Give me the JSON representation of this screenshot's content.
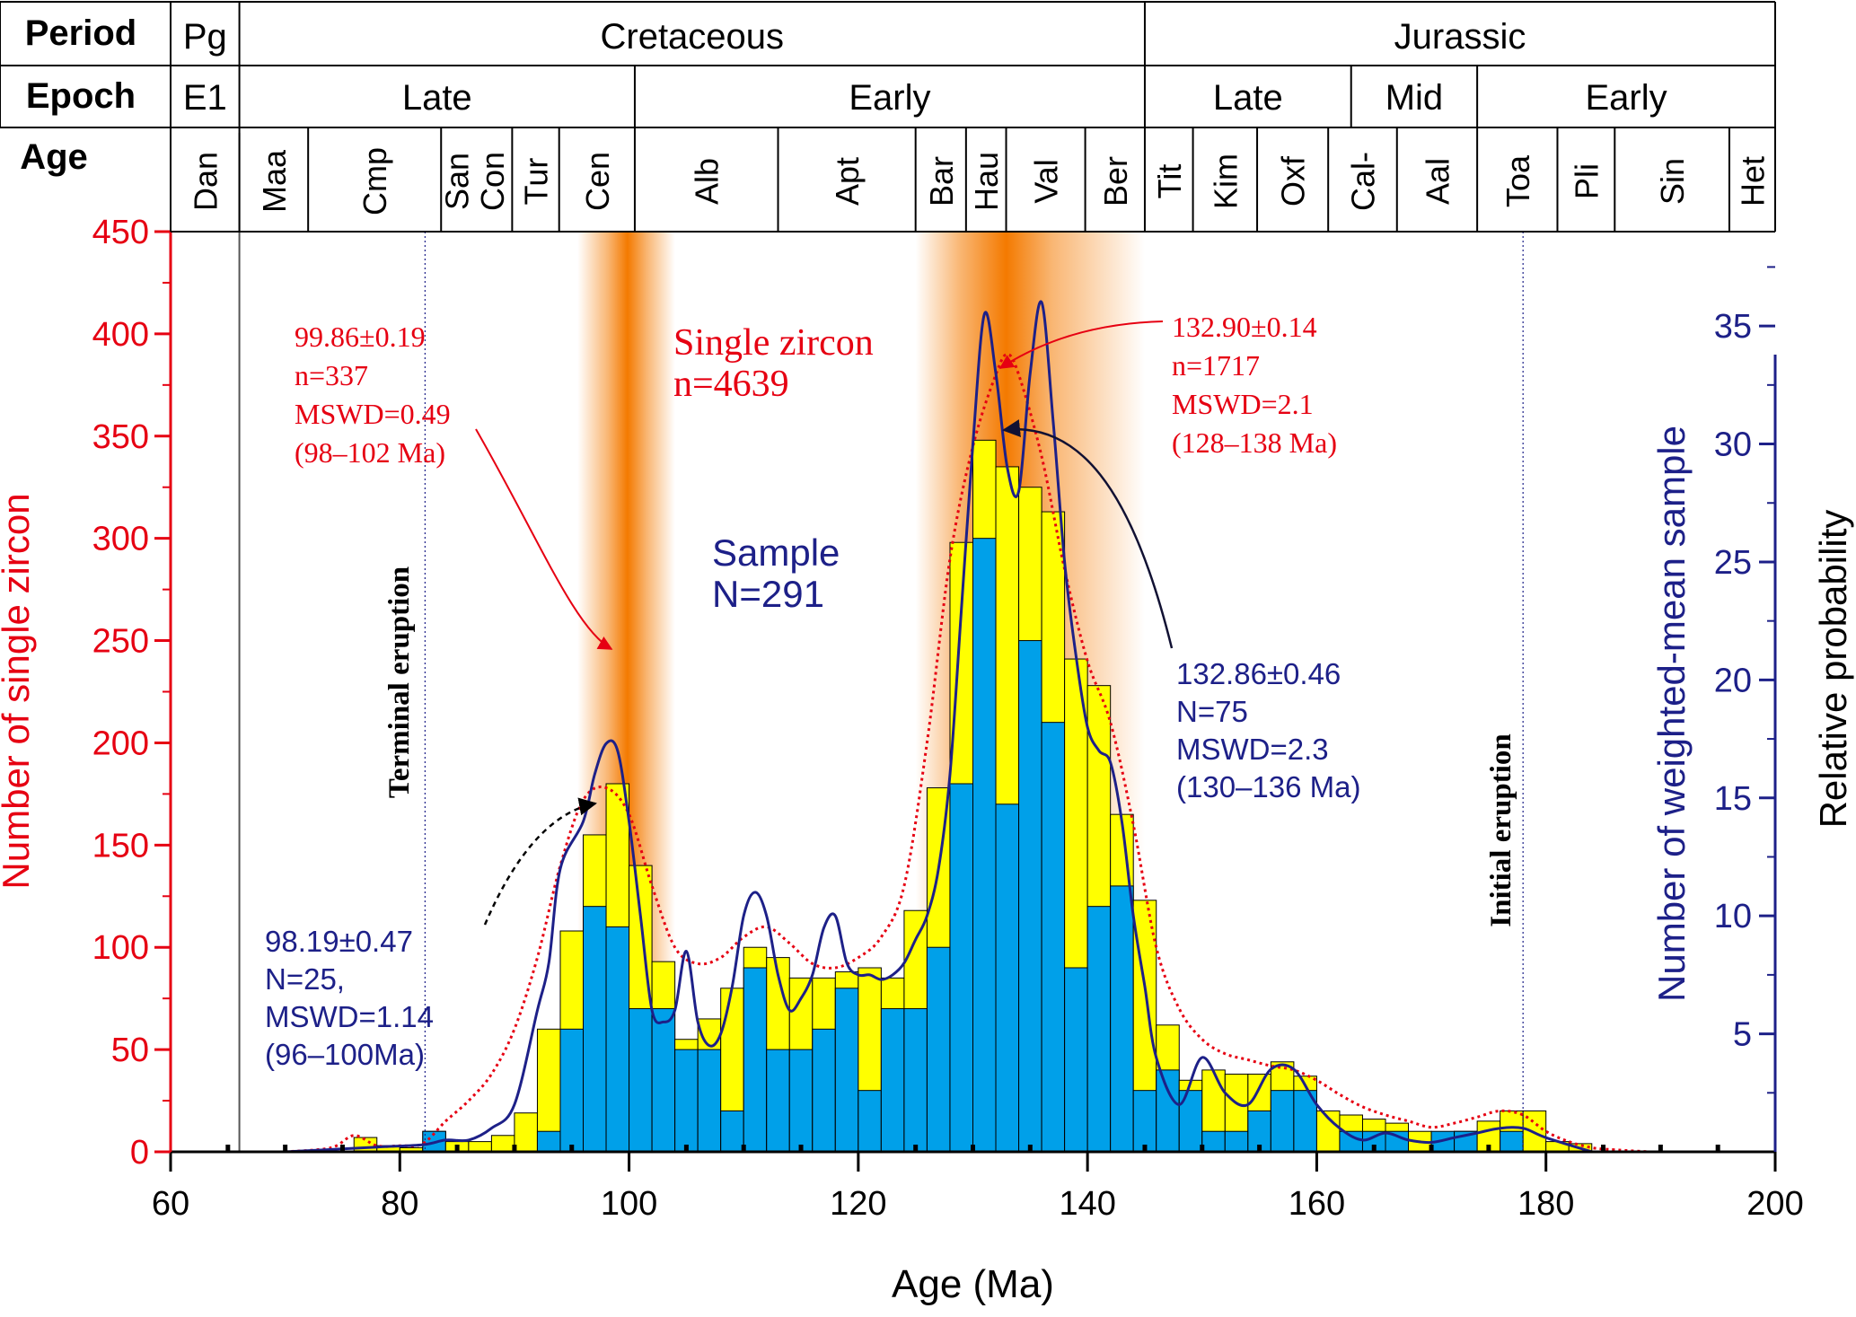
{
  "chart_data": {
    "type": "bar",
    "xlabel": "Age (Ma)",
    "ylabel_left": "Number of single zircon",
    "ylabel_right_inner": "Number of weighted-mean sample",
    "ylabel_right_outer": "Relative probability",
    "xlim": [
      60,
      200
    ],
    "ylim_left": [
      0,
      450
    ],
    "ylim_right": [
      0,
      39
    ],
    "x_ticks": [
      "60",
      "80",
      "100",
      "120",
      "140",
      "160",
      "180",
      "200"
    ],
    "y_left_ticks": [
      "0",
      "50",
      "100",
      "150",
      "200",
      "250",
      "300",
      "350",
      "400",
      "450"
    ],
    "y_right_ticks": [
      "5",
      "10",
      "15",
      "20",
      "25",
      "30",
      "35"
    ],
    "colors": {
      "single_zircon_bar": "#ffff00",
      "sample_bar": "#00a0e9",
      "single_zircon_curve": "#e60012",
      "sample_curve": "#1d2088",
      "axis_left": "#e60012",
      "axis_right": "#1d2088",
      "highlight": "#f47a00"
    },
    "timescale": {
      "row_labels": {
        "period": "Period",
        "epoch": "Epoch",
        "age": "Age"
      },
      "periods": [
        {
          "label": "Pg",
          "from": 60,
          "to": 66
        },
        {
          "label": "Cretaceous",
          "from": 66,
          "to": 145
        },
        {
          "label": "Jurassic",
          "from": 145,
          "to": 200
        }
      ],
      "epochs": [
        {
          "label": "E1",
          "from": 60,
          "to": 66
        },
        {
          "label": "Late",
          "from": 66,
          "to": 100.5
        },
        {
          "label": "Early",
          "from": 100.5,
          "to": 145
        },
        {
          "label": "Late",
          "from": 145,
          "to": 163
        },
        {
          "label": "Mid",
          "from": 163,
          "to": 174
        },
        {
          "label": "Early",
          "from": 174,
          "to": 200
        }
      ],
      "stages": [
        {
          "label": "Dan",
          "from": 60,
          "to": 66
        },
        {
          "label": "Maa",
          "from": 66,
          "to": 72
        },
        {
          "label": "Cmp",
          "from": 72,
          "to": 83.6
        },
        {
          "label": "San",
          "from": 83.6,
          "to": 86.3
        },
        {
          "label": "Con",
          "from": 86.3,
          "to": 89.8
        },
        {
          "label": "Tur",
          "from": 89.8,
          "to": 93.9
        },
        {
          "label": "Cen",
          "from": 93.9,
          "to": 100.5
        },
        {
          "label": "Alb",
          "from": 100.5,
          "to": 113
        },
        {
          "label": "Apt",
          "from": 113,
          "to": 125
        },
        {
          "label": "Bar",
          "from": 125,
          "to": 129.4
        },
        {
          "label": "Hau",
          "from": 129.4,
          "to": 132.9
        },
        {
          "label": "Val",
          "from": 132.9,
          "to": 139.8
        },
        {
          "label": "Ber",
          "from": 139.8,
          "to": 145
        },
        {
          "label": "Tit",
          "from": 145,
          "to": 149.2
        },
        {
          "label": "Kim",
          "from": 149.2,
          "to": 154.8
        },
        {
          "label": "Oxf",
          "from": 154.8,
          "to": 161
        },
        {
          "label": "Cal-",
          "from": 161,
          "to": 167
        },
        {
          "label": "Aal",
          "from": 167,
          "to": 174
        },
        {
          "label": "Toa",
          "from": 174,
          "to": 181
        },
        {
          "label": "Pli",
          "from": 181,
          "to": 186
        },
        {
          "label": "Sin",
          "from": 186,
          "to": 196
        },
        {
          "label": "Het",
          "from": 196,
          "to": 200
        }
      ]
    },
    "highlight_bands": [
      {
        "from": 95.5,
        "to": 104.0,
        "center": 99.86
      },
      {
        "from": 125.0,
        "to": 145.0,
        "center": 132.9
      }
    ],
    "reference_lines": [
      {
        "x": 82.2,
        "label": "Terminal eruption"
      },
      {
        "x": 178.0,
        "label": "Initial eruption"
      }
    ],
    "bin_width": 2,
    "bin_starts": [
      76,
      78,
      80,
      82,
      84,
      86,
      88,
      90,
      92,
      94,
      96,
      98,
      100,
      102,
      104,
      106,
      108,
      110,
      112,
      114,
      116,
      118,
      120,
      122,
      124,
      126,
      128,
      130,
      132,
      134,
      136,
      138,
      140,
      142,
      144,
      146,
      148,
      150,
      152,
      154,
      156,
      158,
      160,
      162,
      164,
      166,
      168,
      170,
      172,
      174,
      176,
      178,
      180,
      182
    ],
    "series": [
      {
        "name": "Single zircon",
        "axis": "left",
        "values": [
          7,
          3,
          2,
          10,
          5,
          5,
          8,
          19,
          60,
          108,
          155,
          180,
          140,
          93,
          55,
          65,
          80,
          100,
          95,
          85,
          85,
          88,
          90,
          85,
          118,
          178,
          298,
          348,
          335,
          325,
          313,
          241,
          228,
          165,
          123,
          62,
          35,
          40,
          38,
          38,
          44,
          37,
          20,
          18,
          16,
          14,
          10,
          8,
          10,
          15,
          20,
          20,
          5,
          4
        ]
      },
      {
        "name": "Sample",
        "axis": "left",
        "values": [
          0,
          0,
          0,
          10,
          0,
          0,
          0,
          0,
          10,
          60,
          120,
          110,
          70,
          70,
          50,
          50,
          20,
          90,
          50,
          50,
          60,
          80,
          30,
          70,
          70,
          100,
          180,
          300,
          170,
          250,
          210,
          90,
          120,
          130,
          30,
          40,
          30,
          10,
          10,
          20,
          30,
          30,
          0,
          10,
          10,
          10,
          0,
          10,
          10,
          0,
          10,
          0,
          0,
          0
        ]
      }
    ],
    "curves": [
      {
        "id": "single-zircon",
        "axis": "left",
        "x": [
          70,
          74,
          76,
          78,
          80,
          82,
          84,
          86,
          88,
          90,
          92,
          94,
          96,
          98,
          100,
          102,
          104,
          106,
          108,
          110,
          112,
          114,
          116,
          118,
          120,
          122,
          124,
          126,
          128,
          130,
          132,
          133,
          134,
          136,
          138,
          140,
          142,
          144,
          146,
          148,
          150,
          152,
          154,
          156,
          158,
          160,
          162,
          164,
          166,
          168,
          170,
          172,
          174,
          176,
          178,
          180,
          182,
          184,
          186,
          189
        ],
        "y": [
          0,
          2,
          8,
          3,
          3,
          4,
          15,
          25,
          38,
          60,
          95,
          140,
          172,
          178,
          165,
          130,
          100,
          92,
          95,
          105,
          110,
          102,
          92,
          90,
          95,
          105,
          130,
          200,
          290,
          345,
          380,
          390,
          380,
          340,
          285,
          240,
          210,
          160,
          100,
          70,
          55,
          48,
          45,
          42,
          40,
          35,
          28,
          22,
          18,
          15,
          12,
          14,
          17,
          20,
          18,
          10,
          5,
          2,
          1,
          0
        ]
      },
      {
        "id": "sample",
        "axis": "right",
        "x": [
          70,
          78,
          82,
          84,
          86,
          88,
          90,
          92,
          93,
          94,
          96,
          97,
          98,
          99,
          100,
          101,
          102,
          103,
          104,
          105,
          106,
          107,
          108,
          109,
          110,
          111,
          112,
          113,
          114,
          115,
          116,
          117,
          118,
          119,
          120,
          121,
          122,
          123,
          124,
          125,
          126,
          127,
          128,
          129,
          130,
          131,
          132,
          133,
          134,
          135,
          136,
          137,
          138,
          139,
          140,
          141,
          142,
          143,
          144,
          145,
          146,
          148,
          150,
          152,
          154,
          156,
          158,
          160,
          162,
          164,
          166,
          168,
          170,
          172,
          174,
          176,
          178,
          180,
          184
        ],
        "y": [
          0,
          0.2,
          0.3,
          0.5,
          0.5,
          1,
          2,
          6,
          8,
          12,
          14,
          16,
          17.3,
          17,
          14,
          10,
          6,
          5.5,
          6,
          8.5,
          5.5,
          4.5,
          5,
          7,
          10,
          11,
          10,
          7.5,
          6,
          6.5,
          7.5,
          9.5,
          10,
          8,
          7.5,
          7.5,
          7.3,
          7.5,
          8,
          9,
          10,
          12,
          16,
          23,
          30,
          35.5,
          33,
          29,
          28,
          33,
          36,
          31,
          25,
          21,
          18,
          17,
          16.5,
          14,
          10,
          7,
          4,
          2,
          4,
          2.5,
          2,
          3.5,
          3.5,
          2,
          1,
          0.5,
          0.8,
          0.5,
          0.4,
          0.6,
          0.8,
          1,
          1,
          0.6,
          0
        ]
      }
    ],
    "annotations": {
      "single_zircon_total": {
        "line1": "Single zircon",
        "line2": "n=4639"
      },
      "sample_total": {
        "line1": "Sample",
        "line2": "N=291"
      },
      "peak_99_single": [
        "99.86±0.19",
        "n=337",
        "MSWD=0.49",
        "(98–102 Ma)"
      ],
      "peak_133_single": [
        "132.90±0.14",
        "n=1717",
        "MSWD=2.1",
        "(128–138 Ma)"
      ],
      "peak_133_sample": [
        "132.86±0.46",
        "N=75",
        "MSWD=2.3",
        "(130–136 Ma)"
      ],
      "peak_98_sample": [
        "98.19±0.47",
        "N=25,",
        "MSWD=1.14",
        "(96–100Ma)"
      ]
    }
  }
}
